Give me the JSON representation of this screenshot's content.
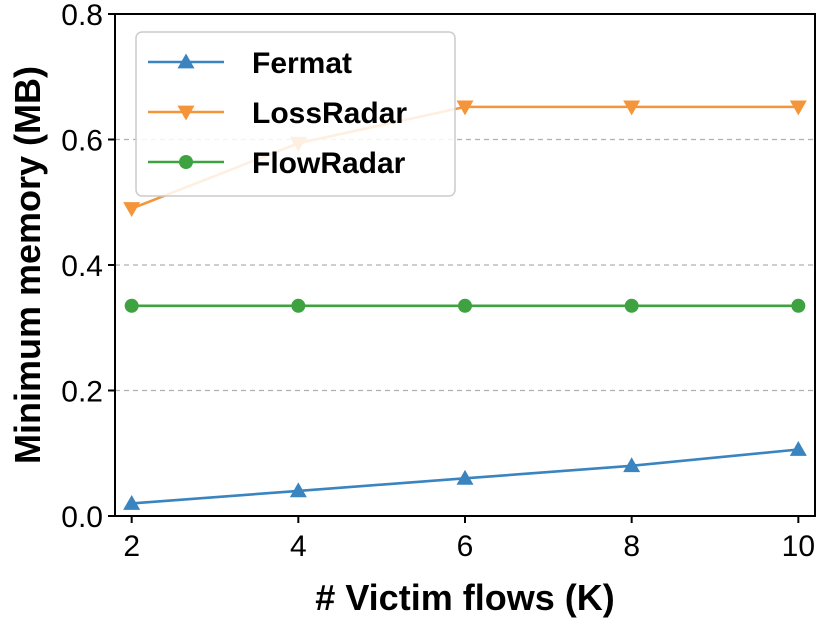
{
  "chart_data": {
    "type": "line",
    "title": "",
    "xlabel": "# Victim flows (K)",
    "ylabel": "Minimum memory (MB)",
    "x": [
      2,
      4,
      6,
      8,
      10
    ],
    "xticks": [
      "2",
      "4",
      "6",
      "8",
      "10"
    ],
    "xlim": [
      1.8,
      10.2
    ],
    "ylim": [
      0,
      0.8
    ],
    "yticks": [
      "0.0",
      "0.2",
      "0.4",
      "0.6",
      "0.8"
    ],
    "grid": "horizontal dashed",
    "legend_position": "top-left",
    "series": [
      {
        "name": "Fermat",
        "values": [
          0.02,
          0.04,
          0.06,
          0.08,
          0.106
        ],
        "color": "#3a84bf",
        "marker": "triangle-up"
      },
      {
        "name": "LossRadar",
        "values": [
          0.49,
          0.594,
          0.652,
          0.652,
          0.652
        ],
        "color": "#f5953a",
        "marker": "triangle-down"
      },
      {
        "name": "FlowRadar",
        "values": [
          0.335,
          0.335,
          0.335,
          0.335,
          0.335
        ],
        "color": "#3ea240",
        "marker": "circle"
      }
    ]
  }
}
